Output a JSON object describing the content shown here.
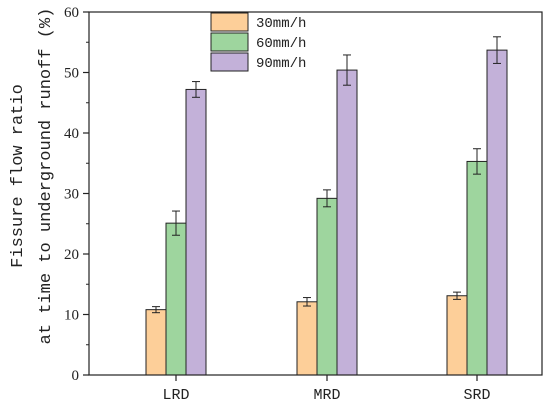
{
  "chart_data": {
    "type": "bar",
    "categories": [
      "LRD",
      "MRD",
      "SRD"
    ],
    "series": [
      {
        "name": "30mm/h",
        "color": "#fdcf99",
        "values": [
          10.8,
          12.1,
          13.1
        ],
        "errors": [
          0.5,
          0.7,
          0.6
        ]
      },
      {
        "name": "60mm/h",
        "color": "#9ed59e",
        "values": [
          25.1,
          29.2,
          35.3
        ],
        "errors": [
          2.0,
          1.4,
          2.1
        ]
      },
      {
        "name": "90mm/h",
        "color": "#c3b1d9",
        "values": [
          47.2,
          50.4,
          53.7
        ],
        "errors": [
          1.3,
          2.5,
          2.2
        ]
      }
    ],
    "ylabel_line1": "Fissure flow ratio",
    "ylabel_line2": "at time to underground runoff (%)",
    "ylim": [
      0,
      60
    ],
    "yticks": [
      0,
      10,
      20,
      30,
      40,
      50,
      60
    ],
    "legend_position": "top-center",
    "grid": false
  }
}
